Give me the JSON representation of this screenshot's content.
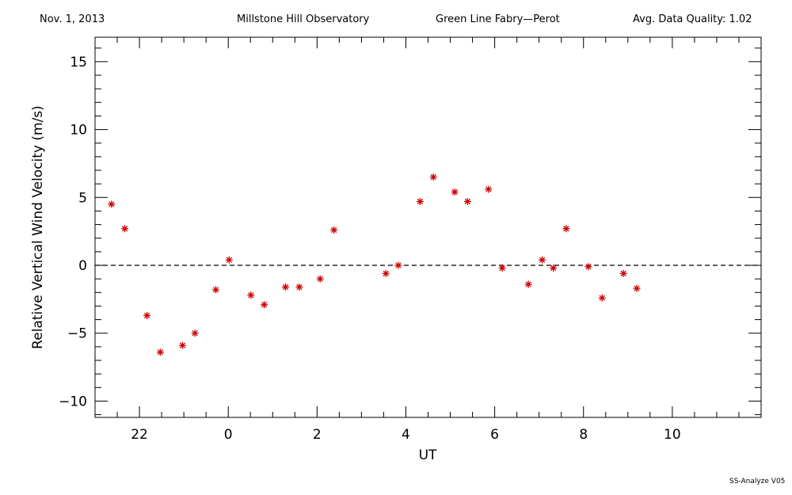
{
  "header": {
    "date": "Nov. 1, 2013",
    "observatory": "Millstone Hill Observatory",
    "instrument": "Green Line Fabry—Perot",
    "quality": "Avg. Data Quality: 1.02"
  },
  "footer": "SS-Analyze V05",
  "chart_data": {
    "type": "scatter",
    "title": "",
    "xlabel": "UT",
    "ylabel": "Relative Vertical Wind Velocity (m/s)",
    "xlim": [
      21.0,
      36.0
    ],
    "ylim": [
      -11.2,
      16.8
    ],
    "x_ticks": [
      22,
      24,
      26,
      28,
      30,
      32,
      34
    ],
    "x_tick_labels": [
      "22",
      "0",
      "2",
      "4",
      "6",
      "8",
      "10"
    ],
    "y_ticks": [
      -10,
      -5,
      0,
      5,
      10,
      15
    ],
    "y_tick_labels": [
      "−10",
      "−5",
      "0",
      "5",
      "10",
      "15"
    ],
    "marker_color": "#cc0000",
    "reference_line": {
      "y": 0,
      "style": "dashed"
    },
    "points": [
      [
        21.37,
        4.5
      ],
      [
        21.67,
        2.7
      ],
      [
        22.17,
        -3.7
      ],
      [
        22.47,
        -6.4
      ],
      [
        22.97,
        -5.9
      ],
      [
        23.25,
        -5.0
      ],
      [
        23.72,
        -1.8
      ],
      [
        24.02,
        0.4
      ],
      [
        24.51,
        -2.2
      ],
      [
        24.81,
        -2.9
      ],
      [
        25.29,
        -1.6
      ],
      [
        25.6,
        -1.6
      ],
      [
        26.07,
        -1.0
      ],
      [
        26.38,
        2.6
      ],
      [
        27.55,
        -0.6
      ],
      [
        27.83,
        0.0
      ],
      [
        28.32,
        4.7
      ],
      [
        28.62,
        6.5
      ],
      [
        29.1,
        5.4
      ],
      [
        29.39,
        4.7
      ],
      [
        29.86,
        5.6
      ],
      [
        30.17,
        -0.2
      ],
      [
        30.76,
        -1.4
      ],
      [
        31.07,
        0.4
      ],
      [
        31.32,
        -0.2
      ],
      [
        31.61,
        2.7
      ],
      [
        32.11,
        -0.1
      ],
      [
        32.42,
        -2.4
      ],
      [
        32.9,
        -0.6
      ],
      [
        33.2,
        -1.7
      ]
    ]
  }
}
